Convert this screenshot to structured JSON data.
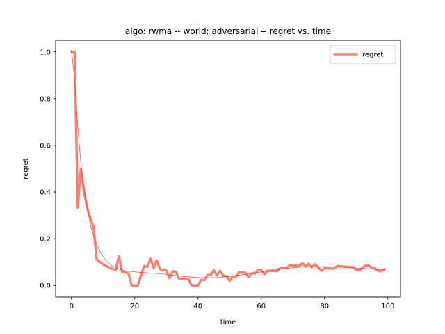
{
  "chart_data": {
    "type": "line",
    "title": "algo: rwma -- world: adversarial -- regret vs. time",
    "xlabel": "time",
    "ylabel": "regret",
    "xlim": [
      -5,
      104
    ],
    "ylim": [
      -0.05,
      1.05
    ],
    "xticks": [
      0,
      20,
      40,
      60,
      80,
      100
    ],
    "yticks": [
      0.0,
      0.2,
      0.4,
      0.6,
      0.8,
      1.0
    ],
    "xtick_labels": [
      "0",
      "20",
      "40",
      "60",
      "80",
      "100"
    ],
    "ytick_labels": [
      "0.0",
      "0.2",
      "0.4",
      "0.6",
      "0.8",
      "1.0"
    ],
    "legend": {
      "placement": "upper right",
      "entries": [
        "regret"
      ]
    },
    "grid": false,
    "colors": {
      "regret": "#fa8072",
      "trend": "#e8443a"
    },
    "series": [
      {
        "name": "regret",
        "x": [
          0,
          1,
          2,
          3,
          4,
          5,
          6,
          7,
          8,
          9,
          10,
          11,
          12,
          13,
          14,
          15,
          16,
          17,
          18,
          19,
          20,
          21,
          22,
          23,
          24,
          25,
          26,
          27,
          28,
          29,
          30,
          31,
          32,
          33,
          34,
          35,
          36,
          37,
          38,
          39,
          40,
          41,
          42,
          43,
          44,
          45,
          46,
          47,
          48,
          49,
          50,
          51,
          52,
          53,
          54,
          55,
          56,
          57,
          58,
          59,
          60,
          61,
          62,
          63,
          64,
          65,
          66,
          67,
          68,
          69,
          70,
          71,
          72,
          73,
          74,
          75,
          76,
          77,
          78,
          79,
          80,
          81,
          82,
          83,
          84,
          85,
          86,
          87,
          88,
          89,
          90,
          91,
          92,
          93,
          94,
          95,
          96,
          97,
          98,
          99
        ],
        "y": [
          1.0,
          1.0,
          0.333,
          0.5,
          0.4,
          0.333,
          0.286,
          0.25,
          0.111,
          0.1,
          0.091,
          0.083,
          0.077,
          0.071,
          0.067,
          0.125,
          0.059,
          0.056,
          0.053,
          0.0,
          0.0,
          0.0,
          0.045,
          0.083,
          0.08,
          0.115,
          0.074,
          0.107,
          0.069,
          0.067,
          0.065,
          0.031,
          0.061,
          0.059,
          0.029,
          0.028,
          0.027,
          0.026,
          0.0,
          0.0,
          0.0,
          0.024,
          0.023,
          0.045,
          0.044,
          0.065,
          0.043,
          0.063,
          0.041,
          0.04,
          0.02,
          0.039,
          0.038,
          0.056,
          0.055,
          0.054,
          0.035,
          0.052,
          0.051,
          0.067,
          0.066,
          0.048,
          0.063,
          0.063,
          0.062,
          0.061,
          0.076,
          0.075,
          0.074,
          0.087,
          0.086,
          0.085,
          0.083,
          0.096,
          0.081,
          0.093,
          0.079,
          0.091,
          0.077,
          0.063,
          0.075,
          0.074,
          0.073,
          0.072,
          0.083,
          0.082,
          0.081,
          0.08,
          0.079,
          0.078,
          0.067,
          0.066,
          0.076,
          0.086,
          0.085,
          0.074,
          0.073,
          0.062,
          0.061,
          0.07
        ]
      },
      {
        "x": [
          0,
          1,
          2,
          3,
          4,
          5,
          6,
          7,
          8,
          9,
          10,
          11,
          12,
          13,
          14,
          15,
          16,
          17,
          18,
          19,
          20,
          22,
          24,
          26,
          28,
          30,
          32,
          34,
          36,
          38,
          40,
          42,
          44,
          46,
          48,
          50,
          52,
          54,
          56,
          58,
          60,
          62,
          64,
          66,
          68,
          70,
          72,
          74,
          76,
          78,
          80,
          82,
          84,
          86,
          88,
          90,
          92,
          94,
          96,
          98,
          99
        ],
        "y": [
          1.01,
          0.88,
          0.68,
          0.52,
          0.41,
          0.33,
          0.26,
          0.21,
          0.175,
          0.145,
          0.123,
          0.106,
          0.093,
          0.083,
          0.076,
          0.07,
          0.066,
          0.063,
          0.061,
          0.06,
          0.058,
          0.056,
          0.054,
          0.052,
          0.05,
          0.047,
          0.044,
          0.041,
          0.038,
          0.036,
          0.034,
          0.033,
          0.033,
          0.034,
          0.036,
          0.039,
          0.042,
          0.046,
          0.05,
          0.054,
          0.058,
          0.062,
          0.066,
          0.07,
          0.073,
          0.076,
          0.078,
          0.08,
          0.081,
          0.081,
          0.081,
          0.08,
          0.079,
          0.078,
          0.077,
          0.075,
          0.073,
          0.071,
          0.069,
          0.067,
          0.066
        ]
      }
    ]
  }
}
